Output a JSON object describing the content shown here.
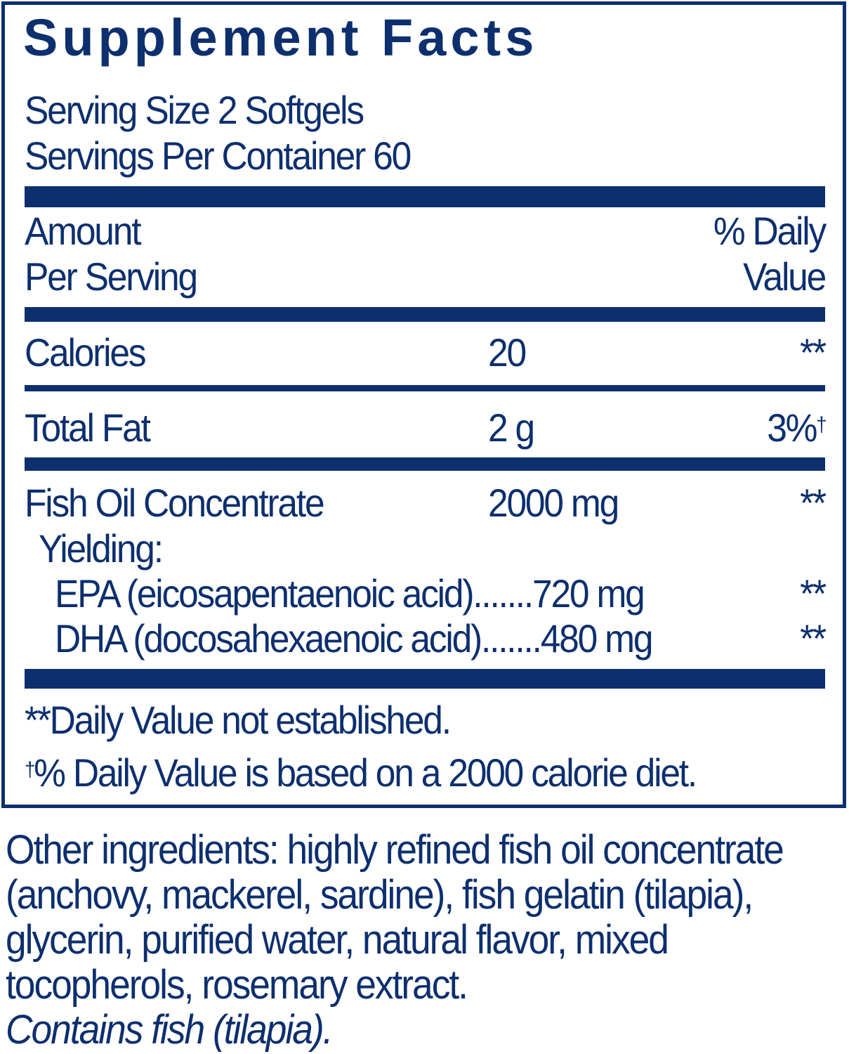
{
  "title": "Supplement Facts",
  "serving_size": "Serving Size 2 Softgels",
  "servings_per_container": "Servings Per Container 60",
  "header": {
    "amount_line1": "Amount",
    "amount_line2": "Per Serving",
    "dv_line1": "% Daily",
    "dv_line2": "Value"
  },
  "rows": [
    {
      "name": "Calories",
      "amount": "20",
      "dv": "**"
    },
    {
      "name": "Total Fat",
      "amount": "2 g",
      "dv": "3%",
      "dv_mark": "†"
    },
    {
      "name": "Fish Oil Concentrate",
      "amount": "2000 mg",
      "dv": "**"
    }
  ],
  "yielding": "Yielding:",
  "sub_rows": [
    {
      "label": "EPA (eicosapentaenoic acid).......720 mg",
      "dv": "**"
    },
    {
      "label": "DHA (docosahexaenoic acid).......480 mg",
      "dv": "**"
    }
  ],
  "footnotes": {
    "note1": "**Daily Value not established.",
    "note2_mark": "†",
    "note2": "% Daily Value is based on a 2000 calorie diet."
  },
  "other_ingredients": "Other ingredients: highly refined fish oil concentrate (anchovy, mackerel, sardine), fish gelatin (tilapia), glycerin, purified water, natural flavor, mixed tocopherols, rosemary extract.",
  "allergen": "Contains fish (tilapia).",
  "colors": {
    "ink": "#0d2f6e"
  }
}
